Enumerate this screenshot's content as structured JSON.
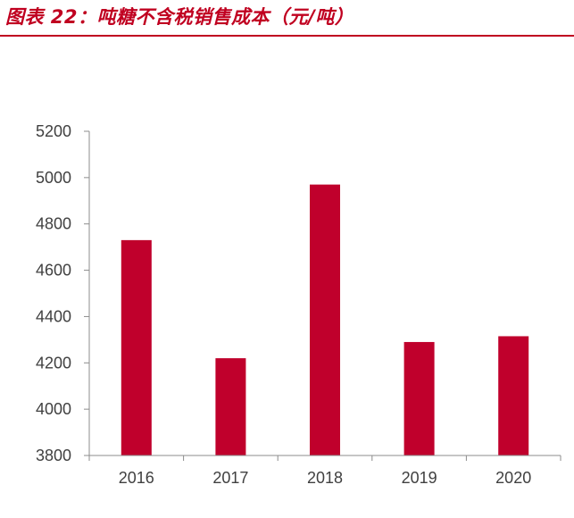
{
  "header": {
    "title": "图表 22：吨糖不含税销售成本（元/吨）"
  },
  "colors": {
    "bar": "#c0002c",
    "title": "#c00020",
    "axis": "#8c8c8c"
  },
  "chart_data": {
    "type": "bar",
    "title": "吨糖不含税销售成本（元/吨）",
    "categories": [
      "2016",
      "2017",
      "2018",
      "2019",
      "2020"
    ],
    "values": [
      4730,
      4220,
      4970,
      4290,
      4315
    ],
    "yticks": [
      "3800",
      "4000",
      "4200",
      "4400",
      "4600",
      "4800",
      "5000",
      "5200"
    ],
    "ylim": [
      3800,
      5200
    ],
    "xlabel": "",
    "ylabel": "",
    "grid": false,
    "legend": "none"
  }
}
